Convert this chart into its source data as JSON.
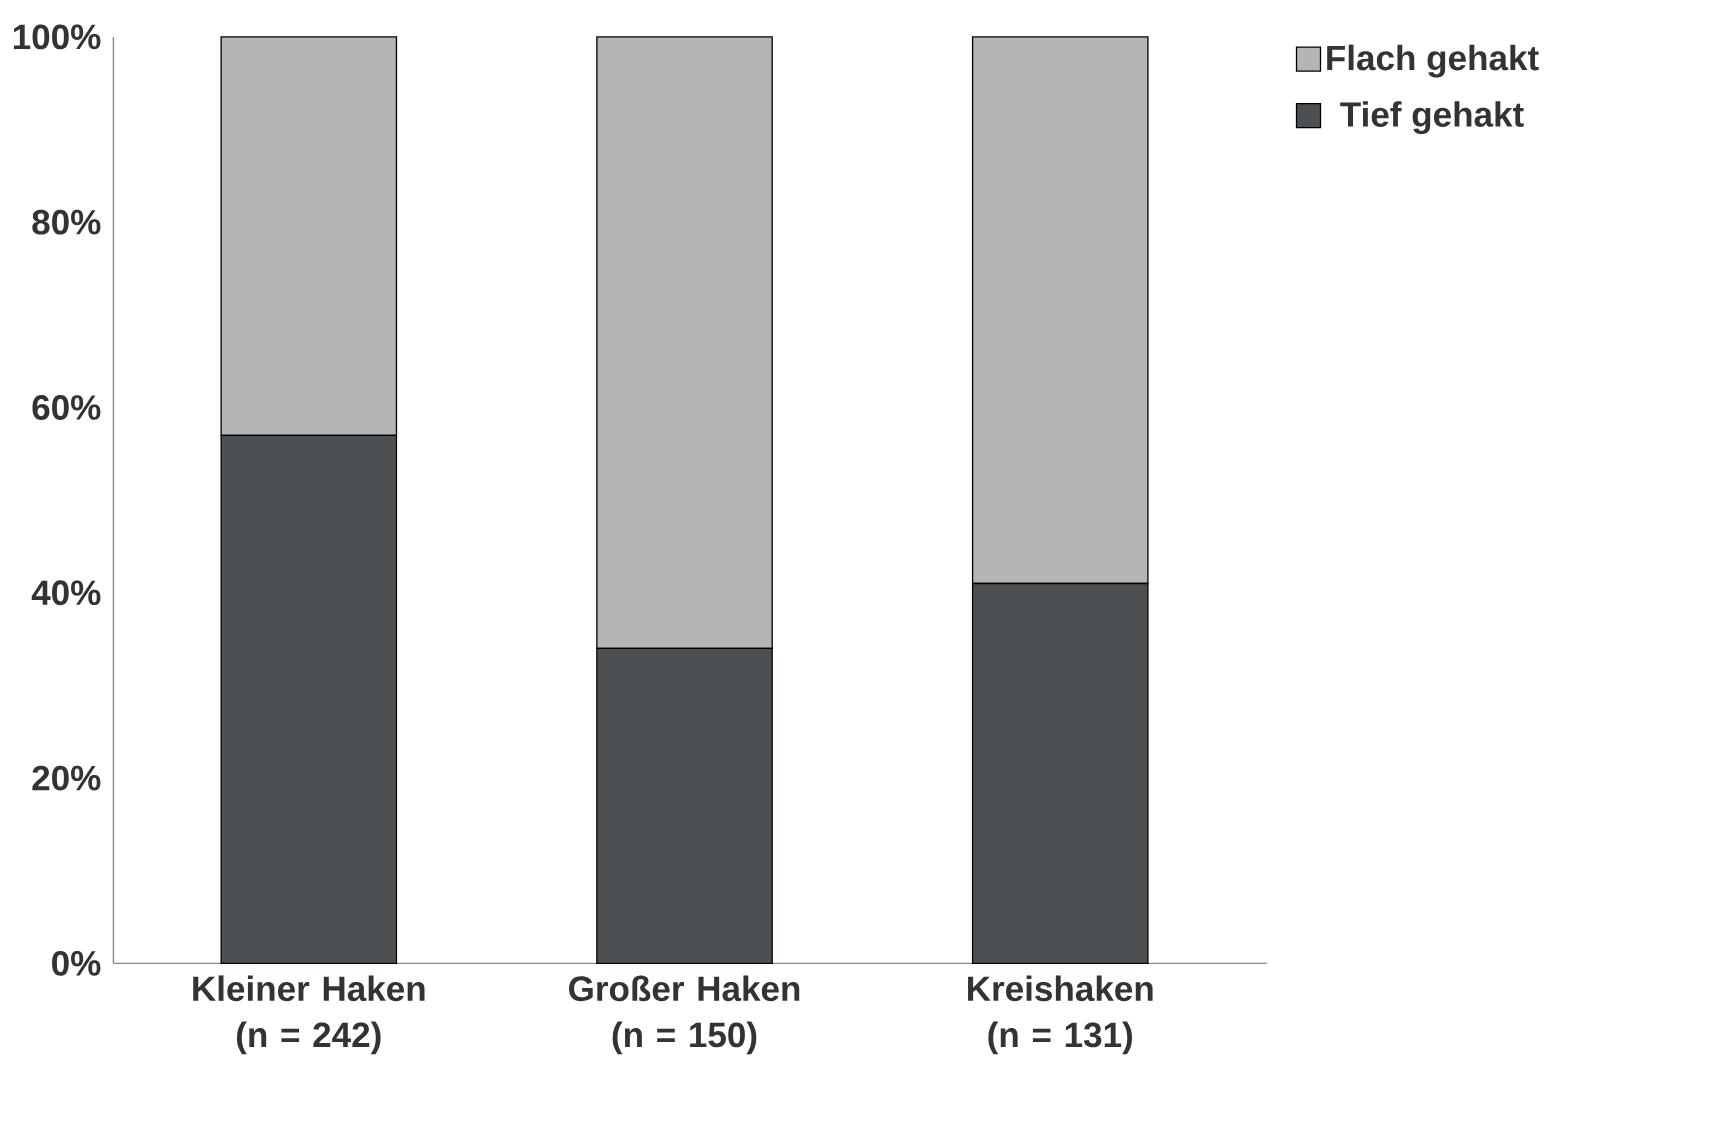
{
  "chart_data": {
    "type": "bar",
    "stacked": true,
    "categories": [
      "Kleiner Haken (n = 242)",
      "Großer Haken (n = 150)",
      "Kreishaken (n = 131)"
    ],
    "series": [
      {
        "name": "Tief gehakt",
        "color": "#4d5052",
        "values": [
          57,
          34,
          41
        ]
      },
      {
        "name": "Flach gehakt",
        "color": "#b3b5b6",
        "values": [
          43,
          66,
          59
        ]
      }
    ],
    "ylim": [
      0,
      100
    ],
    "yticks": [
      {
        "value": 0,
        "label": "0%"
      },
      {
        "value": 20,
        "label": "20%"
      },
      {
        "value": 40,
        "label": "40%"
      },
      {
        "value": 60,
        "label": "60%"
      },
      {
        "value": 80,
        "label": "80%"
      },
      {
        "value": 100,
        "label": "100%"
      }
    ],
    "legend": "top right",
    "grid": false
  }
}
